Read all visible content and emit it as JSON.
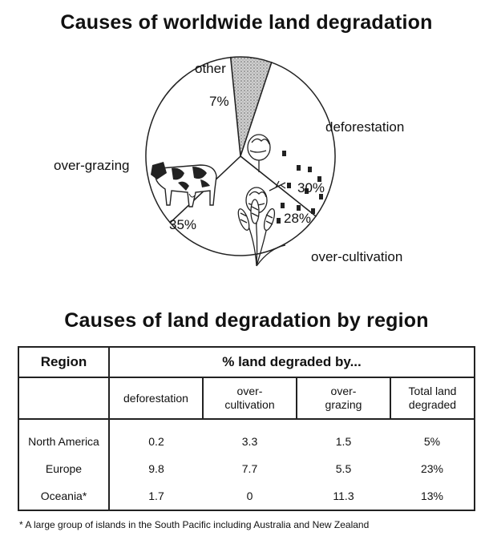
{
  "chart_data": [
    {
      "type": "pie",
      "title": "Causes of worldwide land degradation",
      "slices": [
        {
          "label": "other",
          "value": 7,
          "value_label": "7%",
          "color": "#bdbdbd",
          "pattern": "stipple"
        },
        {
          "label": "deforestation",
          "value": 30,
          "value_label": "30%",
          "color": "#ffffff",
          "icon": "trees-and-stumps-icon"
        },
        {
          "label": "over-cultivation",
          "value": 28,
          "value_label": "28%",
          "color": "#ffffff",
          "icon": "wheat-icon"
        },
        {
          "label": "over-grazing",
          "value": 35,
          "value_label": "35%",
          "color": "#ffffff",
          "icon": "cow-icon"
        }
      ]
    },
    {
      "type": "table",
      "title": "Causes of land degradation by region",
      "header": {
        "region": "Region",
        "group": "% land degraded by..."
      },
      "columns": [
        "deforestation",
        "over-\ncultivation",
        "over-\ngrazing",
        "Total land\ndegraded"
      ],
      "rows": [
        {
          "region": "North America",
          "values": [
            "0.2",
            "3.3",
            "1.5",
            "5%"
          ]
        },
        {
          "region": "Europe",
          "values": [
            "9.8",
            "7.7",
            "5.5",
            "23%"
          ]
        },
        {
          "region": "Oceania*",
          "values": [
            "1.7",
            "0",
            "11.3",
            "13%"
          ]
        }
      ],
      "footnote": "* A large group of islands in the South Pacific including Australia and New Zealand"
    }
  ]
}
